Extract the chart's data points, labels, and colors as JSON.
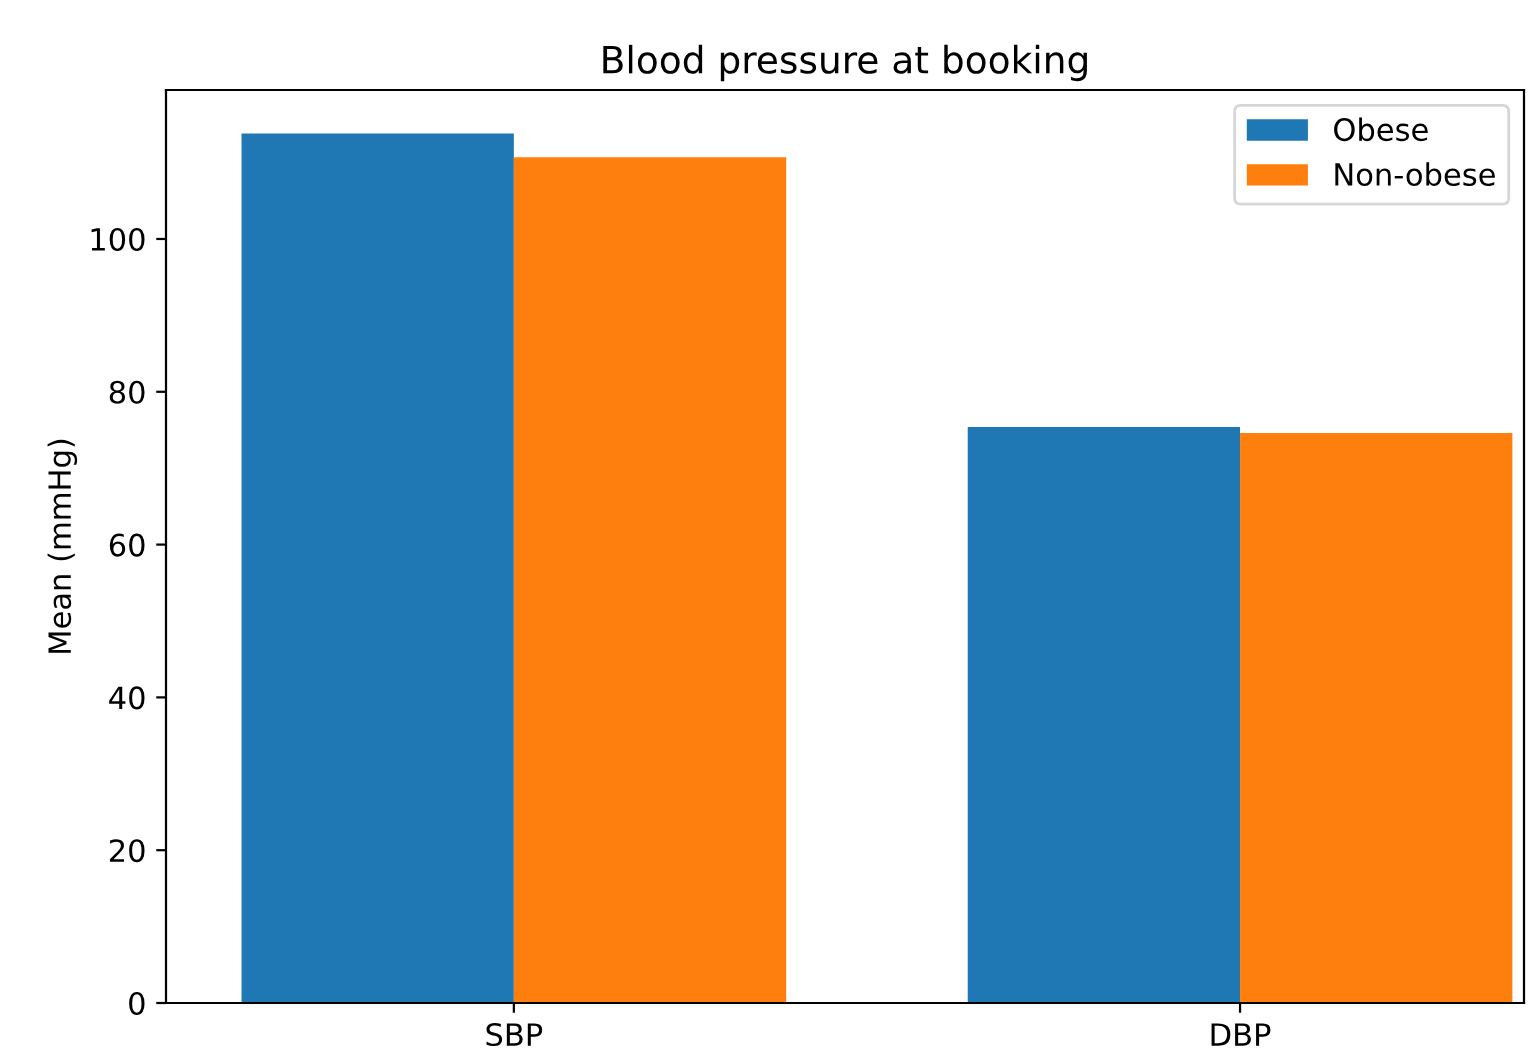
{
  "chart_data": {
    "type": "bar",
    "title": "Blood pressure at booking",
    "ylabel": "Mean (mmHg)",
    "categories": [
      "SBP",
      "DBP"
    ],
    "series": [
      {
        "name": "Obese",
        "color": "#1f77b4",
        "values": [
          113.8,
          75.4
        ]
      },
      {
        "name": "Non-obese",
        "color": "#ff7f0e",
        "values": [
          110.7,
          74.6
        ]
      }
    ],
    "ylim": [
      0,
      119.5
    ],
    "yticks": [
      0,
      20,
      40,
      60,
      80,
      100
    ],
    "legend": "top right",
    "grid": false
  }
}
